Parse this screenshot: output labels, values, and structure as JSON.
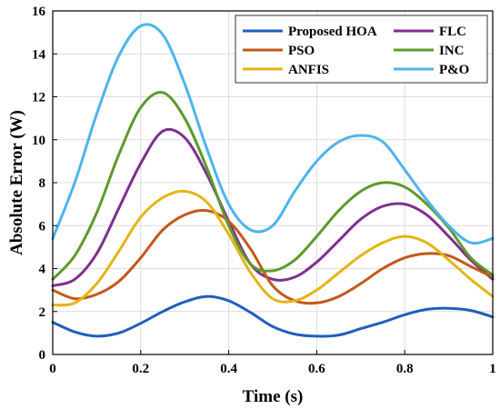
{
  "chart_data": {
    "type": "line",
    "xlabel": "Time (s)",
    "ylabel": "Absolute Error (W)",
    "xlim": [
      0,
      1
    ],
    "ylim": [
      0,
      16
    ],
    "xticks": [
      "0",
      "0.2",
      "0.4",
      "0.6",
      "0.8",
      "1"
    ],
    "yticks": [
      "0",
      "2",
      "4",
      "6",
      "8",
      "10",
      "12",
      "14",
      "16"
    ],
    "grid": true,
    "legend_placement": "top-right",
    "legend_columns": 2,
    "x": [
      0,
      0.05,
      0.1,
      0.15,
      0.2,
      0.25,
      0.3,
      0.35,
      0.4,
      0.45,
      0.5,
      0.55,
      0.6,
      0.65,
      0.7,
      0.75,
      0.8,
      0.85,
      0.9,
      0.95,
      1
    ],
    "series": [
      {
        "name": "Proposed HOA",
        "color": "#1f5fbf",
        "values": [
          1.5,
          1.05,
          0.85,
          1.0,
          1.45,
          2.0,
          2.45,
          2.7,
          2.5,
          1.95,
          1.3,
          0.95,
          0.85,
          0.9,
          1.2,
          1.5,
          1.85,
          2.1,
          2.15,
          2.05,
          1.75
        ]
      },
      {
        "name": "FLC",
        "color": "#7e2f8e",
        "values": [
          3.2,
          3.5,
          4.7,
          6.8,
          8.9,
          10.4,
          10.1,
          8.4,
          6.2,
          4.2,
          3.5,
          3.6,
          4.3,
          5.3,
          6.3,
          6.9,
          7.0,
          6.5,
          5.5,
          4.4,
          3.5
        ]
      },
      {
        "name": "PSO",
        "color": "#c4581a",
        "values": [
          3.0,
          2.6,
          2.8,
          3.4,
          4.5,
          5.8,
          6.5,
          6.7,
          6.2,
          4.9,
          3.2,
          2.5,
          2.4,
          2.7,
          3.3,
          4.0,
          4.5,
          4.7,
          4.6,
          4.1,
          3.6
        ]
      },
      {
        "name": "INC",
        "color": "#5e9a2a",
        "values": [
          3.5,
          4.6,
          6.6,
          9.3,
          11.5,
          12.2,
          11.0,
          8.7,
          6.0,
          4.2,
          3.9,
          4.4,
          5.5,
          6.7,
          7.6,
          8.0,
          7.8,
          7.0,
          5.9,
          4.5,
          3.7
        ]
      },
      {
        "name": "ANFIS",
        "color": "#e5b414",
        "values": [
          2.3,
          2.4,
          3.3,
          4.8,
          6.4,
          7.3,
          7.6,
          7.1,
          5.6,
          3.8,
          2.6,
          2.5,
          3.0,
          3.8,
          4.6,
          5.2,
          5.5,
          5.2,
          4.4,
          3.5,
          2.7
        ]
      },
      {
        "name": "P&O",
        "color": "#4db4ec",
        "values": [
          5.4,
          8.0,
          11.2,
          13.9,
          15.3,
          14.9,
          12.6,
          9.6,
          7.0,
          5.8,
          6.0,
          7.6,
          9.0,
          9.9,
          10.2,
          9.9,
          8.6,
          7.2,
          6.0,
          5.2,
          5.4
        ]
      }
    ]
  }
}
